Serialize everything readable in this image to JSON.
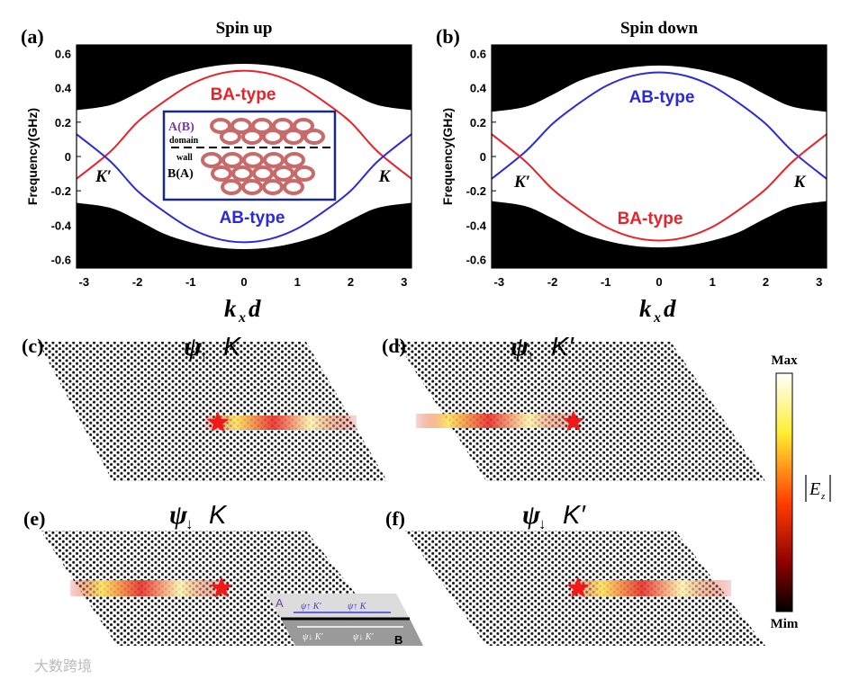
{
  "chart_data": [
    {
      "type": "line",
      "panel": "(a)",
      "title": "Spin up",
      "y_label": "Frequency(GHz)",
      "x_label": {
        "base": "k",
        "sub": "x",
        "tail": "d"
      },
      "x": [
        -3.14,
        -2.5,
        -2,
        -1.5,
        -1,
        -0.5,
        0,
        0.5,
        1,
        1.5,
        2,
        2.5,
        3.14
      ],
      "xlim": [
        -3.14,
        3.14
      ],
      "xticks": [
        -3,
        -2,
        -1,
        0,
        1,
        2,
        3
      ],
      "ylim": [
        -0.65,
        0.65
      ],
      "yticks": [
        0.6,
        0.4,
        0.2,
        0,
        -0.2,
        -0.4,
        -0.6
      ],
      "series": [
        {
          "color": "#000000",
          "fill": "top",
          "values": [
            0.27,
            0.3,
            0.37,
            0.45,
            0.5,
            0.53,
            0.54,
            0.53,
            0.5,
            0.45,
            0.37,
            0.3,
            0.27
          ]
        },
        {
          "color": "#000000",
          "fill": "bottom",
          "values": [
            -0.27,
            -0.3,
            -0.37,
            -0.45,
            -0.5,
            -0.53,
            -0.54,
            -0.53,
            -0.5,
            -0.45,
            -0.37,
            -0.3,
            -0.27
          ]
        },
        {
          "name": "BA-type",
          "color": "#e8222a",
          "values": [
            -0.13,
            0.03,
            0.2,
            0.32,
            0.42,
            0.48,
            0.5,
            0.48,
            0.42,
            0.32,
            0.2,
            0.03,
            -0.13
          ]
        },
        {
          "name": "AB-type",
          "color": "#2b2bd6",
          "values": [
            0.13,
            -0.03,
            -0.2,
            -0.32,
            -0.42,
            -0.48,
            -0.5,
            -0.48,
            -0.42,
            -0.32,
            -0.2,
            -0.03,
            0.13
          ]
        }
      ],
      "annotations": [
        "K′",
        "K"
      ],
      "inset": {
        "top": "A(B)",
        "domain": "domain",
        "wall": "wall",
        "bottom": "B(A)"
      }
    },
    {
      "type": "line",
      "panel": "(b)",
      "title": "Spin down",
      "y_label": "Frequency(GHz)",
      "x_label": {
        "base": "k",
        "sub": "x",
        "tail": "d"
      },
      "x": [
        -3.14,
        -2.5,
        -2,
        -1.5,
        -1,
        -0.5,
        0,
        0.5,
        1,
        1.5,
        2,
        2.5,
        3.14
      ],
      "xlim": [
        -3.14,
        3.14
      ],
      "xticks": [
        -3,
        -2,
        -1,
        0,
        1,
        2,
        3
      ],
      "ylim": [
        -0.65,
        0.65
      ],
      "yticks": [
        0.6,
        0.4,
        0.2,
        0,
        -0.2,
        -0.4,
        -0.6
      ],
      "series": [
        {
          "color": "#000000",
          "fill": "top",
          "values": [
            0.26,
            0.29,
            0.36,
            0.44,
            0.49,
            0.52,
            0.53,
            0.52,
            0.49,
            0.44,
            0.36,
            0.29,
            0.26
          ]
        },
        {
          "color": "#000000",
          "fill": "bottom",
          "values": [
            -0.26,
            -0.29,
            -0.36,
            -0.44,
            -0.49,
            -0.52,
            -0.53,
            -0.52,
            -0.49,
            -0.44,
            -0.36,
            -0.29,
            -0.26
          ]
        },
        {
          "name": "AB-type",
          "color": "#2b2bd6",
          "values": [
            -0.13,
            0.03,
            0.19,
            0.31,
            0.41,
            0.47,
            0.49,
            0.47,
            0.41,
            0.31,
            0.19,
            0.03,
            -0.13
          ]
        },
        {
          "name": "BA-type",
          "color": "#e8222a",
          "values": [
            0.13,
            -0.03,
            -0.19,
            -0.31,
            -0.41,
            -0.47,
            -0.49,
            -0.47,
            -0.41,
            -0.31,
            -0.19,
            -0.03,
            0.13
          ]
        }
      ],
      "annotations": [
        "K′",
        "K"
      ]
    }
  ],
  "panels": [
    {
      "label": "(c)",
      "psi": "ψ",
      "spin": "↑",
      "k": "K"
    },
    {
      "label": "(d)",
      "psi": "ψ",
      "spin": "↑",
      "k": "K′"
    },
    {
      "label": "(e)",
      "psi": "ψ",
      "spin": "↓",
      "k": "K"
    },
    {
      "label": "(f)",
      "psi": "ψ",
      "spin": "↓",
      "k": "K′"
    }
  ],
  "inset_e": {
    "a": "A",
    "b": "B",
    "top_left": "ψ↑  K′",
    "top_right": "ψ↑  K",
    "bottom_left": "ψ↓  K′",
    "bottom_right": "ψ↓  K′"
  },
  "colorbar": {
    "max": "Max",
    "min": "Mim",
    "base": "E",
    "sub": "z"
  },
  "watermark": "大数跨境"
}
